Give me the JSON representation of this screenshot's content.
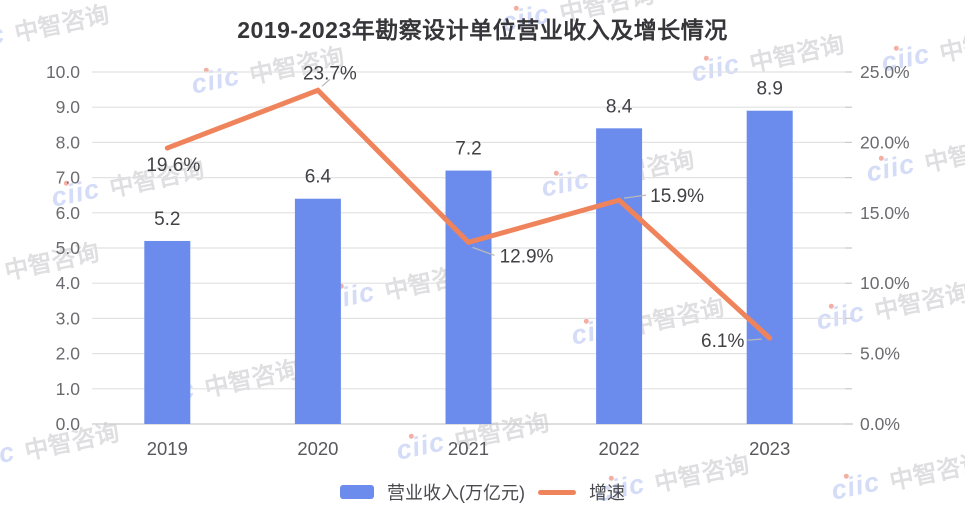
{
  "title": "2019-2023年勘察设计单位营业收入及增长情况",
  "watermark": {
    "logo": "ciic",
    "brand": "中智咨询"
  },
  "legend": {
    "bar_label": "营业收入(万亿元)",
    "line_label": "增速"
  },
  "colors": {
    "bar": "#6B8CEC",
    "line": "#EF845C",
    "title_text": "#36363a",
    "axis_text": "#6b6b6f",
    "grid": "#e2e2e4",
    "axis_line": "#c9c9c9",
    "value_text": "#414146",
    "watermark_blue": "rgba(125,150,230,0.33)",
    "watermark_gray": "rgba(150,150,155,0.30)",
    "watermark_dot": "rgba(235,110,90,0.55)"
  },
  "chart_data": {
    "type": "combo-bar-line",
    "title": "2019-2023年勘察设计单位营业收入及增长情况",
    "categories": [
      "2019",
      "2020",
      "2021",
      "2022",
      "2023"
    ],
    "series": [
      {
        "name": "营业收入(万亿元)",
        "type": "bar",
        "axis": "left",
        "unit": "万亿元",
        "values": [
          5.2,
          6.4,
          7.2,
          8.4,
          8.9
        ],
        "labels": [
          "5.2",
          "6.4",
          "7.2",
          "8.4",
          "8.9"
        ],
        "color": "#6B8CEC"
      },
      {
        "name": "增速",
        "type": "line",
        "axis": "right",
        "unit": "%",
        "values": [
          19.6,
          23.7,
          12.9,
          15.9,
          6.1
        ],
        "labels": [
          "19.6%",
          "23.7%",
          "12.9%",
          "15.9%",
          "6.1%"
        ],
        "color": "#EF845C"
      }
    ],
    "left_axis": {
      "min": 0,
      "max": 10,
      "step": 1,
      "tick_labels": [
        "0.0",
        "1.0",
        "2.0",
        "3.0",
        "4.0",
        "5.0",
        "6.0",
        "7.0",
        "8.0",
        "9.0",
        "10.0"
      ]
    },
    "right_axis": {
      "min": 0,
      "max": 25,
      "label_step": 5,
      "tick_step": 2.5,
      "tick_labels": [
        "0.0%",
        "5.0%",
        "10.0%",
        "15.0%",
        "20.0%",
        "25.0%"
      ]
    },
    "grid": true,
    "legend_position": "bottom"
  }
}
